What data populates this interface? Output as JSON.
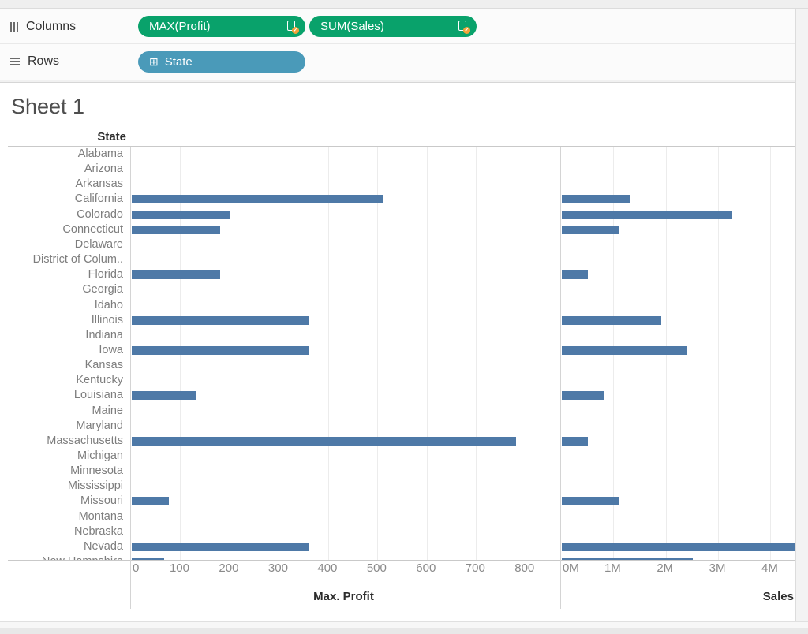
{
  "shelves": {
    "columns_label": "Columns",
    "rows_label": "Rows",
    "column_pills": [
      {
        "label": "MAX(Profit)"
      },
      {
        "label": "SUM(Sales)"
      }
    ],
    "row_pills": [
      {
        "label": "State"
      }
    ]
  },
  "sheet": {
    "title": "Sheet 1",
    "row_header": "State"
  },
  "colors": {
    "measure_pill_green": "#09a26b",
    "dimension_pill_teal": "#4a9ab9",
    "bar_blue": "#4e79a7",
    "pill_badge_orange": "#f2a33a"
  },
  "chart_data": {
    "type": "bar",
    "orientation": "horizontal",
    "title": "Sheet 1",
    "row_header": "State",
    "grid": true,
    "bar_color": "#4e79a7",
    "categories": [
      "Alabama",
      "Arizona",
      "Arkansas",
      "California",
      "Colorado",
      "Connecticut",
      "Delaware",
      "District of Colum..",
      "Florida",
      "Georgia",
      "Idaho",
      "Illinois",
      "Indiana",
      "Iowa",
      "Kansas",
      "Kentucky",
      "Louisiana",
      "Maine",
      "Maryland",
      "Massachusetts",
      "Michigan",
      "Minnesota",
      "Mississippi",
      "Missouri",
      "Montana",
      "Nebraska",
      "Nevada",
      "New Hampshire"
    ],
    "last_row_clipped": true,
    "series": [
      {
        "name": "Max. Profit",
        "xlim": [
          0,
          866
        ],
        "tick_values": [
          0,
          100,
          200,
          300,
          400,
          500,
          600,
          700,
          800
        ],
        "tick_labels": [
          "0",
          "100",
          "200",
          "300",
          "400",
          "500",
          "600",
          "700",
          "800"
        ],
        "values": [
          null,
          null,
          null,
          510,
          200,
          180,
          null,
          null,
          180,
          null,
          null,
          360,
          null,
          360,
          null,
          null,
          130,
          null,
          null,
          780,
          null,
          null,
          null,
          75,
          null,
          null,
          360,
          65
        ]
      },
      {
        "name": "Sales",
        "xlim": [
          0,
          4.46
        ],
        "tick_values": [
          0,
          1,
          2,
          3,
          4
        ],
        "tick_labels": [
          "0M",
          "1M",
          "2M",
          "3M",
          "4M"
        ],
        "values": [
          null,
          null,
          null,
          1.3,
          3.25,
          1.1,
          null,
          null,
          0.5,
          null,
          null,
          1.9,
          null,
          2.4,
          null,
          null,
          0.8,
          null,
          null,
          0.5,
          null,
          null,
          null,
          1.1,
          null,
          null,
          4.5,
          2.5
        ],
        "clipped_values": [
          "Nevada"
        ]
      }
    ]
  }
}
